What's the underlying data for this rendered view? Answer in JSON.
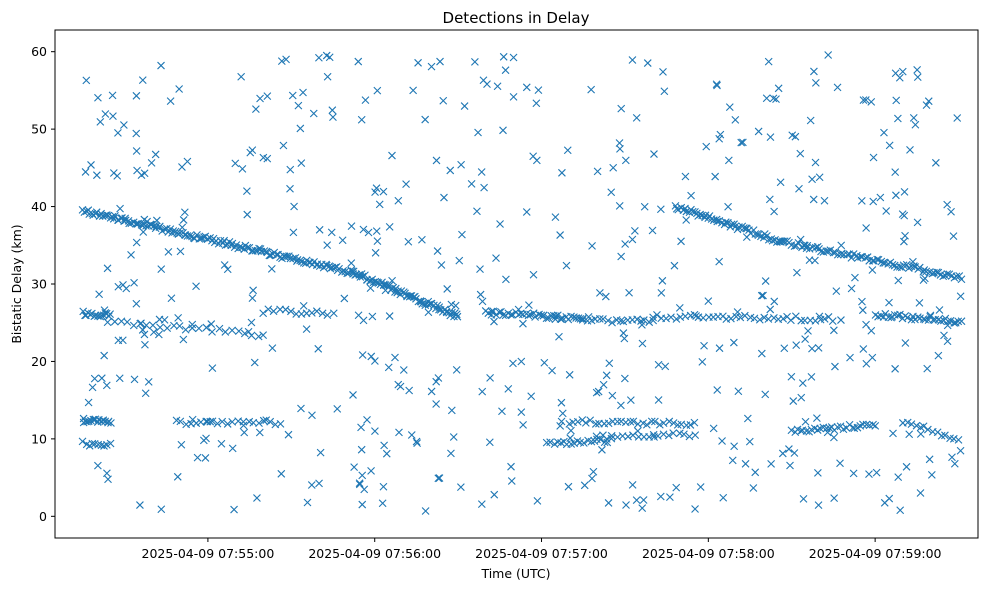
{
  "chart_data": {
    "type": "scatter",
    "title": "Detections in Delay",
    "xlabel": "Time (UTC)",
    "ylabel": "Bistatic Delay (km)",
    "x_domain": [
      "2025-04-09T07:54:05",
      "2025-04-09T07:59:37"
    ],
    "ylim": [
      -2.8,
      62.8
    ],
    "x_ticks": [
      {
        "time": "2025-04-09T07:55:00",
        "label": "2025-04-09 07:55:00"
      },
      {
        "time": "2025-04-09T07:56:00",
        "label": "2025-04-09 07:56:00"
      },
      {
        "time": "2025-04-09T07:57:00",
        "label": "2025-04-09 07:57:00"
      },
      {
        "time": "2025-04-09T07:58:00",
        "label": "2025-04-09 07:58:00"
      },
      {
        "time": "2025-04-09T07:59:00",
        "label": "2025-04-09 07:59:00"
      }
    ],
    "y_ticks": [
      0,
      10,
      20,
      30,
      40,
      50,
      60
    ],
    "marker": "x",
    "color": "#1f77b4",
    "grid": false,
    "series": [
      {
        "tracks": [
          {
            "start": "2025-04-09T07:54:15",
            "end": "2025-04-09T07:55:52",
            "y_start": 39.5,
            "y_end": 31.5,
            "count": 150
          },
          {
            "start": "2025-04-09T07:55:52",
            "end": "2025-04-09T07:56:30",
            "y_start": 31.5,
            "y_end": 25.8,
            "count": 70
          },
          {
            "start": "2025-04-09T07:57:48",
            "end": "2025-04-09T07:58:26",
            "y_start": 40.0,
            "y_end": 35.5,
            "count": 55
          },
          {
            "start": "2025-04-09T07:58:26",
            "end": "2025-04-09T07:59:31",
            "y_start": 35.5,
            "y_end": 30.8,
            "count": 80
          },
          {
            "start": "2025-04-09T07:54:15",
            "end": "2025-04-09T07:54:25",
            "y_start": 26.2,
            "y_end": 26.0,
            "count": 16
          },
          {
            "start": "2025-04-09T07:54:24",
            "end": "2025-04-09T07:55:18",
            "y_start": 25.2,
            "y_end": 23.5,
            "count": 24
          },
          {
            "start": "2025-04-09T07:55:20",
            "end": "2025-04-09T07:55:45",
            "y_start": 26.5,
            "y_end": 26.2,
            "count": 14
          },
          {
            "start": "2025-04-09T07:56:40",
            "end": "2025-04-09T07:57:15",
            "y_start": 26.3,
            "y_end": 25.6,
            "count": 40
          },
          {
            "start": "2025-04-09T07:57:15",
            "end": "2025-04-09T07:57:40",
            "y_start": 25.3,
            "y_end": 25.1,
            "count": 18
          },
          {
            "start": "2025-04-09T07:57:40",
            "end": "2025-04-09T07:58:45",
            "y_start": 25.8,
            "y_end": 25.5,
            "count": 40
          },
          {
            "start": "2025-04-09T07:59:00",
            "end": "2025-04-09T07:59:31",
            "y_start": 26.0,
            "y_end": 25.2,
            "count": 35
          },
          {
            "start": "2025-04-09T07:54:15",
            "end": "2025-04-09T07:54:25",
            "y_start": 12.4,
            "y_end": 12.3,
            "count": 18
          },
          {
            "start": "2025-04-09T07:54:15",
            "end": "2025-04-09T07:54:25",
            "y_start": 9.4,
            "y_end": 9.2,
            "count": 10
          },
          {
            "start": "2025-04-09T07:54:50",
            "end": "2025-04-09T07:55:26",
            "y_start": 12.1,
            "y_end": 12.1,
            "count": 20
          },
          {
            "start": "2025-04-09T07:57:02",
            "end": "2025-04-09T07:57:25",
            "y_start": 9.4,
            "y_end": 9.8,
            "count": 20
          },
          {
            "start": "2025-04-09T07:57:10",
            "end": "2025-04-09T07:57:55",
            "y_start": 12.2,
            "y_end": 12.0,
            "count": 30
          },
          {
            "start": "2025-04-09T07:57:20",
            "end": "2025-04-09T07:57:55",
            "y_start": 10.2,
            "y_end": 10.6,
            "count": 20
          },
          {
            "start": "2025-04-09T07:58:30",
            "end": "2025-04-09T07:59:00",
            "y_start": 11.0,
            "y_end": 11.8,
            "count": 30
          },
          {
            "start": "2025-04-09T07:59:10",
            "end": "2025-04-09T07:59:30",
            "y_start": 12.3,
            "y_end": 9.9,
            "count": 14
          }
        ],
        "noise": {
          "count": 560,
          "y_range": [
            0.5,
            59.8
          ]
        }
      }
    ]
  }
}
